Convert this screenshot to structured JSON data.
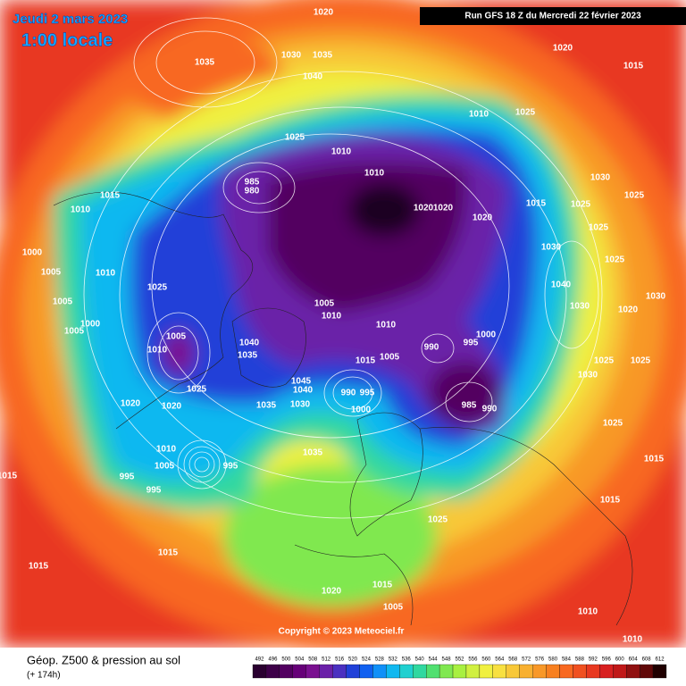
{
  "header": {
    "date": "Jeudi 2 mars 2023",
    "time": "1:00 locale",
    "run": "Run GFS 18 Z du Mercredi 22 février 2023"
  },
  "footer": {
    "title": "Géop. Z500 & pression au sol",
    "subtitle": "(+ 174h)",
    "copyright": "Copyright © 2023 Meteociel.fr"
  },
  "legend": {
    "values": [
      492,
      496,
      500,
      504,
      508,
      512,
      516,
      520,
      524,
      528,
      532,
      536,
      540,
      544,
      548,
      552,
      556,
      560,
      564,
      568,
      572,
      576,
      580,
      584,
      588,
      592,
      596,
      600,
      604,
      608,
      612
    ],
    "colors": [
      "#2a0030",
      "#3d0048",
      "#520060",
      "#660078",
      "#7a1090",
      "#6a20a8",
      "#4a30c0",
      "#2040d8",
      "#1060f0",
      "#1090f8",
      "#10b8f0",
      "#20d0d0",
      "#30d8a0",
      "#50e070",
      "#80e850",
      "#a8f040",
      "#d0f040",
      "#f0f040",
      "#f8e040",
      "#f8c838",
      "#f8b030",
      "#f89828",
      "#f88020",
      "#f86820",
      "#f05020",
      "#e83820",
      "#d82020",
      "#c01818",
      "#901010",
      "#600808",
      "#200000"
    ]
  },
  "pressure_labels": [
    "1020",
    "1030",
    "1035",
    "1035",
    "1040",
    "1020",
    "1015",
    "1010",
    "1025",
    "1025",
    "1010",
    "1010",
    "985",
    "980",
    "1015",
    "1010",
    "1020",
    "1020",
    "1020",
    "1015",
    "1025",
    "1030",
    "1025",
    "1025",
    "1030",
    "1025",
    "1000",
    "1005",
    "1010",
    "1025",
    "1005",
    "1010",
    "1005",
    "1000",
    "1005",
    "1005",
    "1010",
    "1010",
    "990",
    "995",
    "1000",
    "1040",
    "1035",
    "1015",
    "1005",
    "1040",
    "1030",
    "1020",
    "1030",
    "1025",
    "1025",
    "1030",
    "1025",
    "1020",
    "1020",
    "1035",
    "1045",
    "1040",
    "1030",
    "990",
    "995",
    "1000",
    "985",
    "990",
    "1025",
    "1010",
    "1005",
    "995",
    "995",
    "995",
    "1035",
    "1015",
    "1015",
    "1025",
    "1015",
    "1015",
    "1015",
    "1015",
    "1020",
    "1005",
    "1010",
    "1010"
  ]
}
